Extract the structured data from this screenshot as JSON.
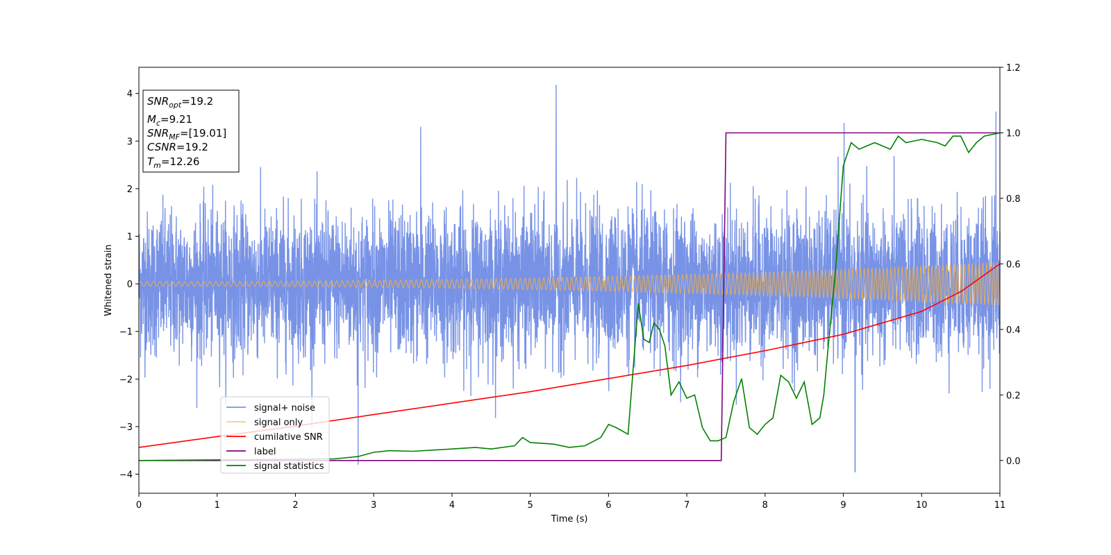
{
  "chart_data": {
    "type": "line",
    "xlabel": "Time (s)",
    "ylabel": "Whitened strain",
    "xlim": [
      0,
      11
    ],
    "ylim": [
      -4.4,
      4.55
    ],
    "y2lim": [
      -0.1,
      1.2
    ],
    "xticks": [
      "0",
      "1",
      "2",
      "3",
      "4",
      "5",
      "6",
      "7",
      "8",
      "9",
      "10",
      "11"
    ],
    "yticks": [
      "−4",
      "−3",
      "−2",
      "−1",
      "0",
      "1",
      "2",
      "3",
      "4"
    ],
    "y2ticks": [
      "0.0",
      "0.2",
      "0.4",
      "0.6",
      "0.8",
      "1.0",
      "1.2"
    ],
    "grid": false,
    "legend_position": "lower-left",
    "info_box": {
      "snr_opt": {
        "main": "SNR",
        "sub": "opt",
        "value": "=19.2"
      },
      "mc": {
        "main": "M",
        "sub": "c",
        "value": "=9.21"
      },
      "snr_mf": {
        "main": "SNR",
        "sub": "MF",
        "value": "=[19.01]"
      },
      "csnr": {
        "main": "CSNR",
        "value": "=19.2"
      },
      "tm": {
        "main": "T",
        "sub": "m",
        "value": "=12.26"
      }
    },
    "series": [
      {
        "name": "signal+ noise",
        "color": "#7893e6",
        "axis": "left",
        "kind": "noise",
        "typical_std": 0.75,
        "min": -4.0,
        "max": 4.18,
        "spikes": [
          [
            5.33,
            4.18
          ],
          [
            9.15,
            -3.95
          ],
          [
            10.95,
            3.62
          ],
          [
            9.01,
            3.38
          ],
          [
            2.8,
            -3.8
          ],
          [
            3.6,
            3.3
          ]
        ]
      },
      {
        "name": "signal only",
        "color": "#f5b041",
        "axis": "left",
        "kind": "chirp",
        "amplitude_start": 0.05,
        "amplitude_end": 0.45,
        "cycles_per_second_start": 12,
        "cycles_per_second_end": 22
      },
      {
        "name": "cumilative SNR",
        "color": "#ff0000",
        "axis": "right",
        "x": [
          0,
          1,
          2,
          3,
          4,
          5,
          6,
          7,
          8,
          9,
          10,
          10.5,
          11
        ],
        "y": [
          0.04,
          0.073,
          0.105,
          0.14,
          0.175,
          0.21,
          0.25,
          0.29,
          0.335,
          0.385,
          0.455,
          0.515,
          0.6
        ]
      },
      {
        "name": "label",
        "color": "#800080",
        "axis": "right",
        "x": [
          0,
          7.44,
          7.5,
          11
        ],
        "y": [
          0.0,
          0.0,
          1.0,
          1.0
        ]
      },
      {
        "name": "signal statistics",
        "color": "#008000",
        "axis": "right",
        "x": [
          0,
          2.5,
          2.8,
          3.0,
          3.2,
          3.5,
          4.0,
          4.3,
          4.5,
          4.8,
          4.9,
          5.0,
          5.3,
          5.5,
          5.7,
          5.9,
          6.0,
          6.1,
          6.25,
          6.38,
          6.45,
          6.52,
          6.58,
          6.65,
          6.72,
          6.8,
          6.9,
          7.0,
          7.1,
          7.2,
          7.3,
          7.4,
          7.5,
          7.6,
          7.7,
          7.8,
          7.9,
          8.0,
          8.1,
          8.2,
          8.3,
          8.4,
          8.5,
          8.6,
          8.7,
          8.75,
          8.8,
          8.9,
          9.0,
          9.1,
          9.2,
          9.4,
          9.6,
          9.7,
          9.8,
          10.0,
          10.2,
          10.3,
          10.4,
          10.5,
          10.6,
          10.7,
          10.8,
          11.0
        ],
        "y": [
          0.0,
          0.005,
          0.012,
          0.025,
          0.03,
          0.028,
          0.035,
          0.04,
          0.035,
          0.045,
          0.07,
          0.055,
          0.05,
          0.04,
          0.045,
          0.07,
          0.11,
          0.1,
          0.08,
          0.48,
          0.37,
          0.36,
          0.42,
          0.4,
          0.35,
          0.2,
          0.24,
          0.19,
          0.2,
          0.1,
          0.06,
          0.06,
          0.07,
          0.18,
          0.25,
          0.1,
          0.08,
          0.11,
          0.13,
          0.26,
          0.24,
          0.19,
          0.24,
          0.11,
          0.13,
          0.2,
          0.33,
          0.58,
          0.9,
          0.97,
          0.95,
          0.97,
          0.95,
          0.99,
          0.97,
          0.98,
          0.97,
          0.96,
          0.99,
          0.99,
          0.94,
          0.97,
          0.99,
          1.0
        ]
      }
    ]
  }
}
